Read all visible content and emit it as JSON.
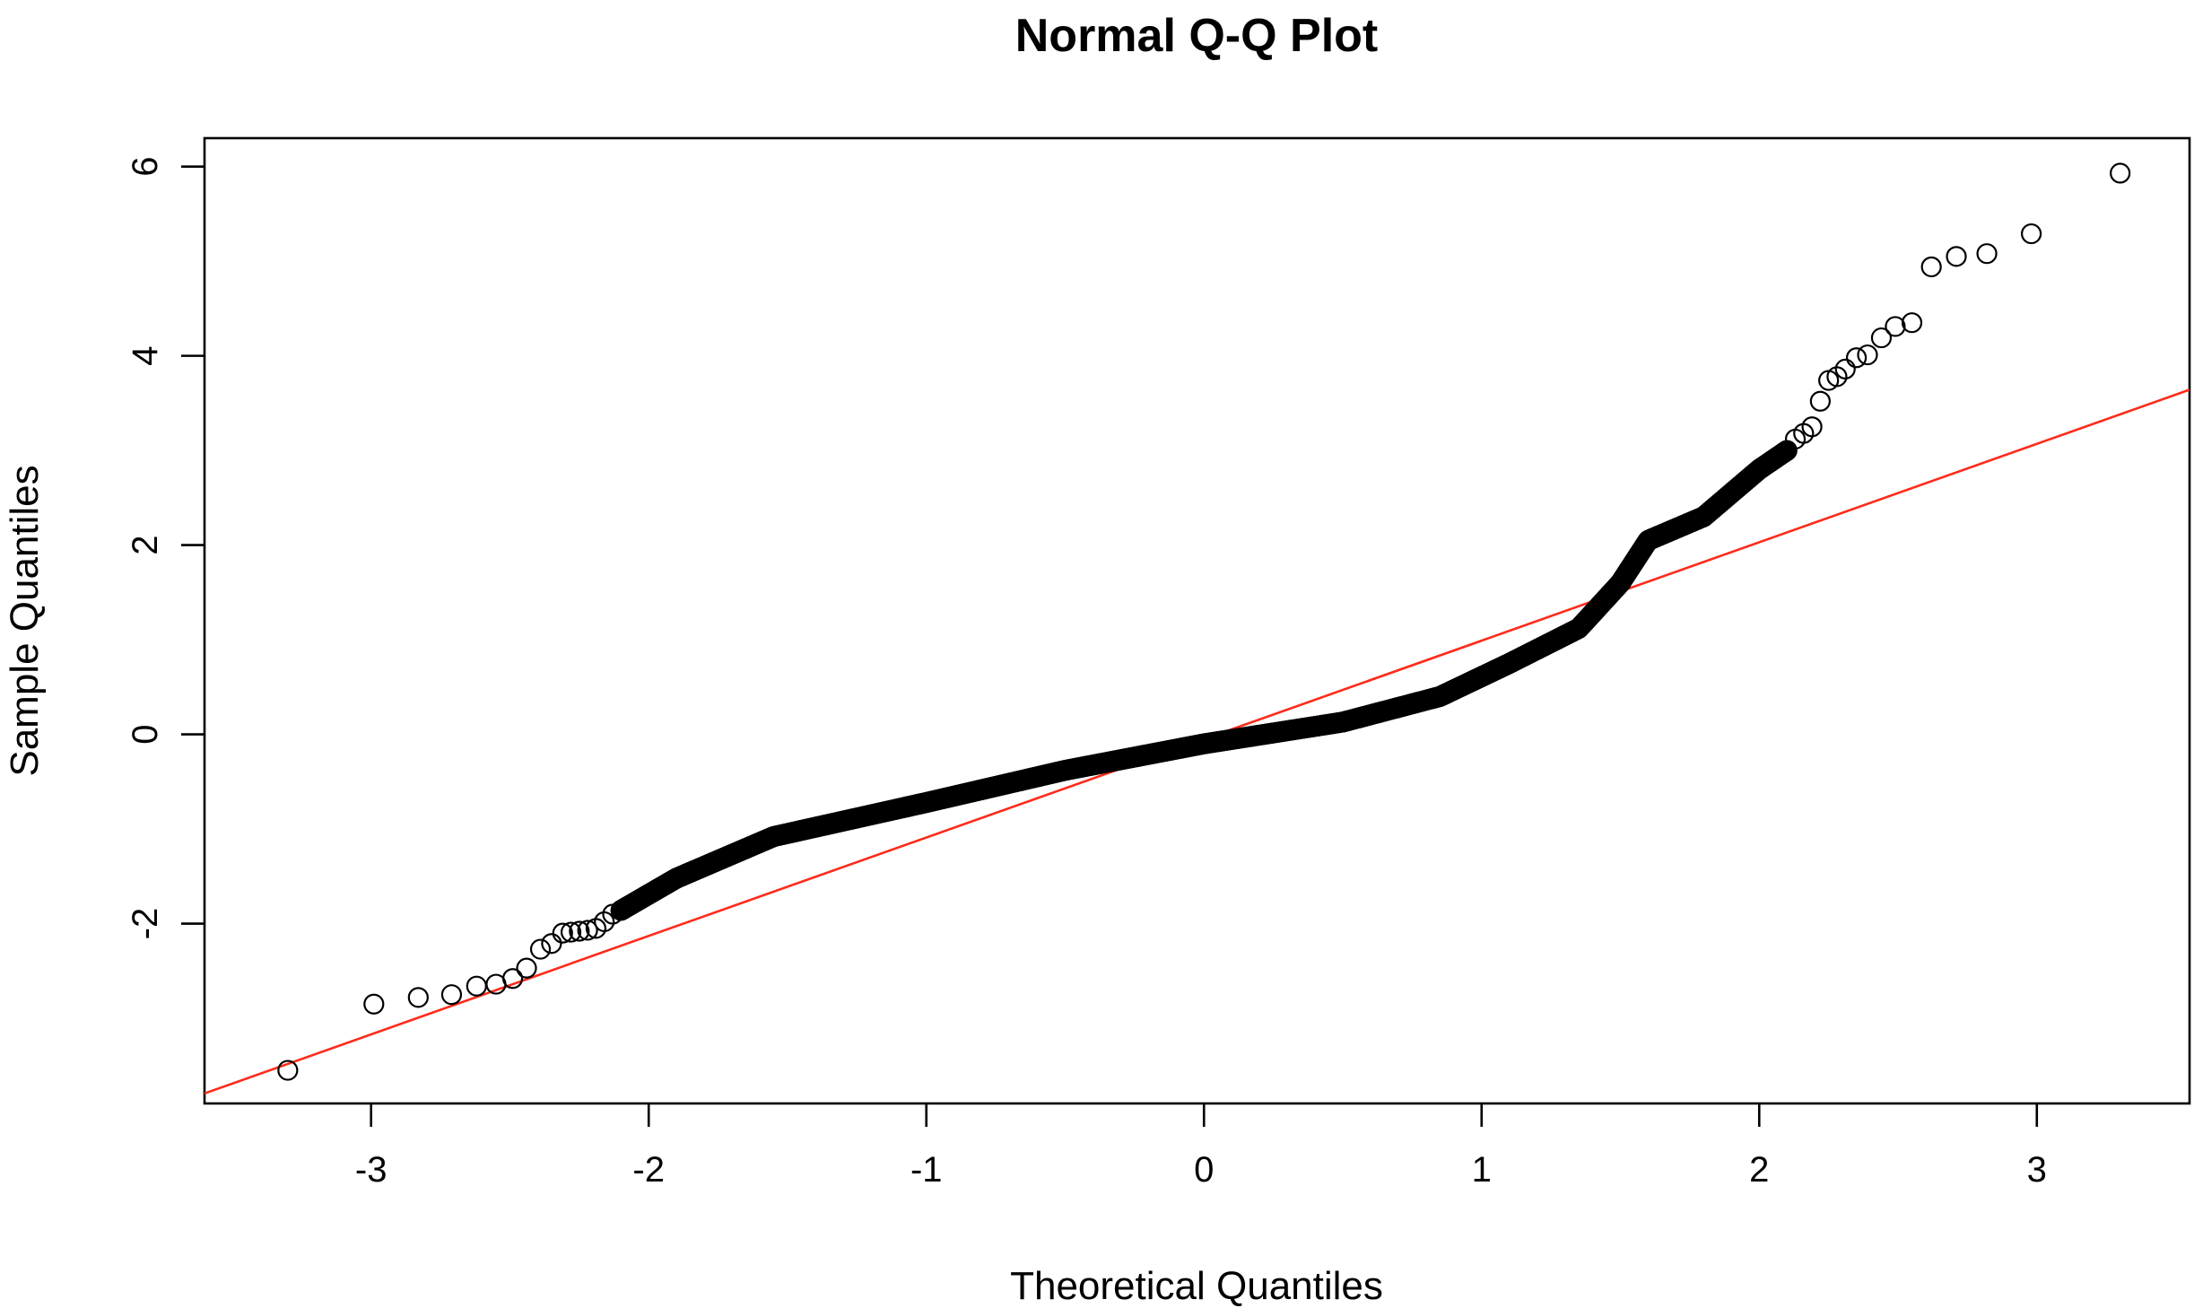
{
  "chart_data": {
    "type": "scatter",
    "title": "Normal Q-Q Plot",
    "xlabel": "Theoretical Quantiles",
    "ylabel": "Sample Quantiles",
    "xlim": [
      -3.6,
      3.55
    ],
    "ylim": [
      -3.9,
      6.3
    ],
    "x_ticks": [
      -3,
      -2,
      -1,
      0,
      1,
      2,
      3
    ],
    "x_tick_labels": [
      "-3",
      "-2",
      "-1",
      "0",
      "1",
      "2",
      "3"
    ],
    "y_ticks": [
      -2,
      0,
      2,
      4,
      6
    ],
    "y_tick_labels": [
      "-2",
      "0",
      "2",
      "4",
      "6"
    ],
    "grid": false,
    "legend": "none",
    "marker": "open-circle",
    "point_color": "#000000",
    "reference_line": {
      "color": "#ff2a1a",
      "intercept": -0.05,
      "slope": 1.04
    },
    "tail_points": [
      {
        "x": -3.3,
        "y": -3.55
      },
      {
        "x": -2.99,
        "y": -2.85
      },
      {
        "x": -2.83,
        "y": -2.78
      },
      {
        "x": -2.71,
        "y": -2.75
      },
      {
        "x": -2.62,
        "y": -2.66
      },
      {
        "x": -2.55,
        "y": -2.64
      },
      {
        "x": -2.49,
        "y": -2.58
      },
      {
        "x": -2.44,
        "y": -2.47
      },
      {
        "x": -2.39,
        "y": -2.27
      },
      {
        "x": -2.35,
        "y": -2.21
      },
      {
        "x": -2.31,
        "y": -2.1
      },
      {
        "x": -2.28,
        "y": -2.09
      },
      {
        "x": -2.25,
        "y": -2.08
      },
      {
        "x": -2.22,
        "y": -2.07
      },
      {
        "x": -2.19,
        "y": -2.05
      },
      {
        "x": -2.16,
        "y": -1.98
      },
      {
        "x": -2.13,
        "y": -1.9
      },
      {
        "x": -2.1,
        "y": -1.86
      },
      {
        "x": 2.13,
        "y": 3.12
      },
      {
        "x": 2.16,
        "y": 3.18
      },
      {
        "x": 2.19,
        "y": 3.25
      },
      {
        "x": 2.22,
        "y": 3.52
      },
      {
        "x": 2.25,
        "y": 3.74
      },
      {
        "x": 2.28,
        "y": 3.78
      },
      {
        "x": 2.31,
        "y": 3.86
      },
      {
        "x": 2.35,
        "y": 3.98
      },
      {
        "x": 2.39,
        "y": 4.01
      },
      {
        "x": 2.44,
        "y": 4.19
      },
      {
        "x": 2.49,
        "y": 4.31
      },
      {
        "x": 2.55,
        "y": 4.35
      },
      {
        "x": 2.62,
        "y": 4.94
      },
      {
        "x": 2.71,
        "y": 5.05
      },
      {
        "x": 2.82,
        "y": 5.08
      },
      {
        "x": 2.98,
        "y": 5.29
      },
      {
        "x": 3.3,
        "y": 5.93
      }
    ],
    "body_curve": {
      "x_range": [
        -2.1,
        2.1
      ],
      "point_count": 1400,
      "knots": [
        {
          "x": -2.1,
          "y": -1.86
        },
        {
          "x": -1.9,
          "y": -1.52
        },
        {
          "x": -1.55,
          "y": -1.08
        },
        {
          "x": -1.0,
          "y": -0.72
        },
        {
          "x": -0.5,
          "y": -0.38
        },
        {
          "x": 0.0,
          "y": -0.1
        },
        {
          "x": 0.5,
          "y": 0.13
        },
        {
          "x": 0.85,
          "y": 0.4
        },
        {
          "x": 1.1,
          "y": 0.75
        },
        {
          "x": 1.35,
          "y": 1.12
        },
        {
          "x": 1.5,
          "y": 1.6
        },
        {
          "x": 1.6,
          "y": 2.05
        },
        {
          "x": 1.8,
          "y": 2.3
        },
        {
          "x": 2.0,
          "y": 2.8
        },
        {
          "x": 2.1,
          "y": 3.0
        }
      ]
    }
  }
}
